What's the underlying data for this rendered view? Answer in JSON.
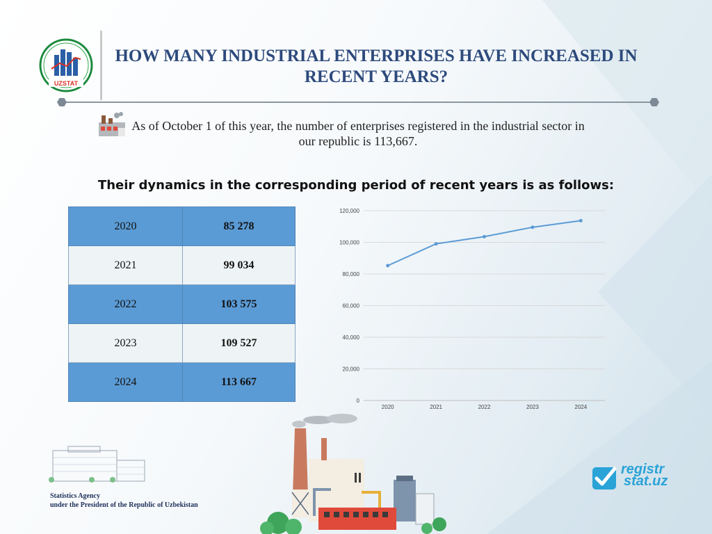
{
  "header": {
    "logo_text": "UZSTAT",
    "title": "HOW MANY INDUSTRIAL ENTERPRISES HAVE INCREASED IN RECENT YEARS?"
  },
  "intro": {
    "text": "As of October 1 of this year, the number of enterprises registered in the industrial sector in our republic is 113,667."
  },
  "subtitle": "Their dynamics in the corresponding period of recent years is as follows:",
  "table": {
    "rows": [
      {
        "year": "2020",
        "value": "85 278"
      },
      {
        "year": "2021",
        "value": "99 034"
      },
      {
        "year": "2022",
        "value": "103 575"
      },
      {
        "year": "2023",
        "value": "109 527"
      },
      {
        "year": "2024",
        "value": "113 667"
      }
    ]
  },
  "chart_data": {
    "type": "line",
    "categories": [
      "2020",
      "2021",
      "2022",
      "2023",
      "2024"
    ],
    "values": [
      85278,
      99034,
      103575,
      109527,
      113667
    ],
    "y_ticks": [
      "0",
      "20,000",
      "40,000",
      "60,000",
      "80,000",
      "100,000",
      "120,000"
    ],
    "ylim": [
      0,
      120000
    ],
    "title": "",
    "xlabel": "",
    "ylabel": "",
    "grid": true,
    "line_color": "#5b9bd5"
  },
  "footer": {
    "agency_line1": "Statistics Agency",
    "agency_line2": "under the President of the Republic of Uzbekistan",
    "brand_line1": "registr",
    "brand_line2": "stat.uz"
  },
  "colors": {
    "title": "#2d4a7c",
    "table_blue": "#5b9bd5",
    "table_light": "#eef4f5",
    "brand": "#2aa3d7"
  }
}
